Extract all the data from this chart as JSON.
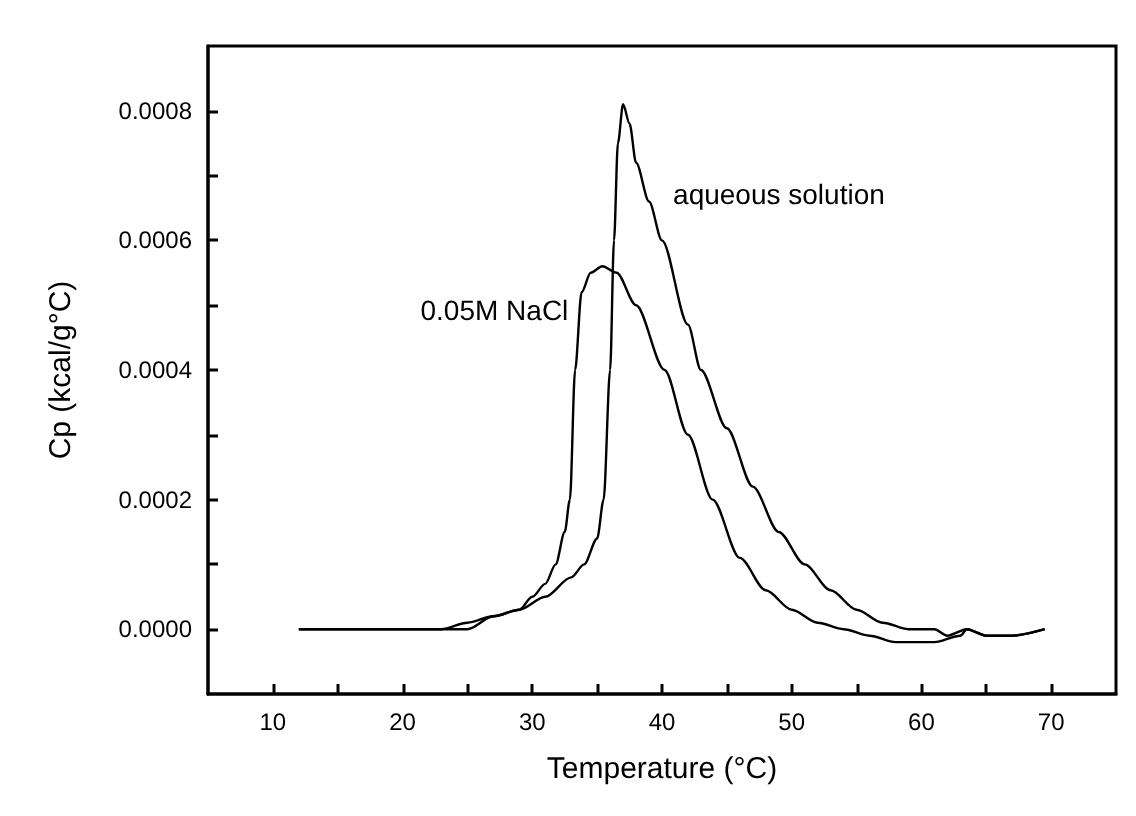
{
  "chart_data": {
    "type": "line",
    "xlabel": "Temperature (°C)",
    "ylabel": "Cp (kcal/g°C)",
    "xlim": [
      5,
      75
    ],
    "ylim": [
      -0.0001,
      0.0009
    ],
    "xticks": [
      10,
      {
        "value": 15,
        "label": null
      },
      20,
      {
        "value": 25,
        "label": null
      },
      30,
      {
        "value": 35,
        "label": null
      },
      40,
      {
        "value": 45,
        "label": null
      },
      50,
      {
        "value": 55,
        "label": null
      },
      60,
      {
        "value": 65,
        "label": null
      },
      70
    ],
    "yticks": [
      {
        "value": 0,
        "label": "0.0000"
      },
      {
        "value": 0.0001,
        "label": null
      },
      {
        "value": 0.0002,
        "label": "0.0002"
      },
      {
        "value": 0.0003,
        "label": null
      },
      {
        "value": 0.0004,
        "label": "0.0004"
      },
      {
        "value": 0.0005,
        "label": null
      },
      {
        "value": 0.0006,
        "label": "0.0006"
      },
      {
        "value": 0.0007,
        "label": null
      },
      {
        "value": 0.0008,
        "label": "0.0008"
      }
    ],
    "grid": false,
    "legend": false,
    "marker": "none",
    "line_style": "solid",
    "series": [
      {
        "name": "aqueous solution",
        "color": "#000000",
        "x": [
          12,
          20,
          23,
          24,
          25,
          27,
          29,
          31,
          33,
          34,
          35,
          35.5,
          36,
          36.3,
          36.6,
          37,
          37.5,
          38,
          39,
          40,
          42,
          43,
          45,
          47,
          49,
          51,
          53,
          55,
          57,
          59,
          61,
          62,
          63.5,
          65,
          67,
          69.5
        ],
        "values": [
          0,
          0,
          0,
          0,
          0,
          2e-05,
          3e-05,
          5e-05,
          8e-05,
          0.0001,
          0.00014,
          0.0002,
          0.0004,
          0.0006,
          0.00075,
          0.00081,
          0.00078,
          0.00072,
          0.00066,
          0.0006,
          0.00047,
          0.0004,
          0.00031,
          0.00022,
          0.00015,
          0.0001,
          6e-05,
          3e-05,
          1e-05,
          0,
          0,
          -1e-05,
          0,
          -1e-05,
          -1e-05,
          0
        ]
      },
      {
        "name": "0.05M NaCl",
        "color": "#000000",
        "x": [
          12,
          20,
          23,
          25,
          27,
          29,
          30,
          31,
          31.8,
          32.5,
          32.9,
          33.3,
          33.8,
          34.5,
          35.4,
          36.5,
          38,
          40.2,
          42,
          43.9,
          46,
          48,
          50,
          52,
          54,
          56,
          58,
          59,
          61,
          63,
          63.5,
          65,
          67,
          69.5
        ],
        "values": [
          0,
          0,
          0,
          1e-05,
          2e-05,
          3e-05,
          5e-05,
          7e-05,
          0.0001,
          0.00015,
          0.0002,
          0.0004,
          0.00052,
          0.00055,
          0.00056,
          0.00055,
          0.0005,
          0.0004,
          0.0003,
          0.0002,
          0.00011,
          6e-05,
          3e-05,
          1e-05,
          0,
          -1e-05,
          -2e-05,
          -2e-05,
          -2e-05,
          -1e-05,
          0,
          -1e-05,
          -1e-05,
          0
        ]
      }
    ]
  }
}
